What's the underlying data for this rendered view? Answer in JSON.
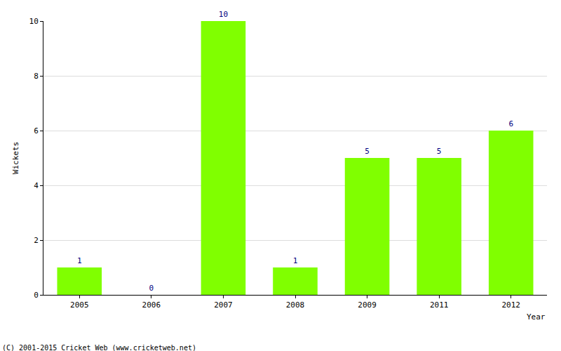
{
  "chart_data": {
    "type": "bar",
    "categories": [
      "2005",
      "2006",
      "2007",
      "2008",
      "2009",
      "2011",
      "2012"
    ],
    "values": [
      1,
      0,
      10,
      1,
      5,
      5,
      6
    ],
    "color": "#80ff00",
    "ylim": [
      0,
      10
    ],
    "yticks": [
      0,
      2,
      4,
      6,
      8,
      10
    ],
    "grid": true,
    "data_labels": true,
    "x_label": "Year",
    "y_label": "Wickets",
    "annotations": [
      "(C) 2001-2015 Cricket Web (www.cricketweb.net)"
    ]
  }
}
